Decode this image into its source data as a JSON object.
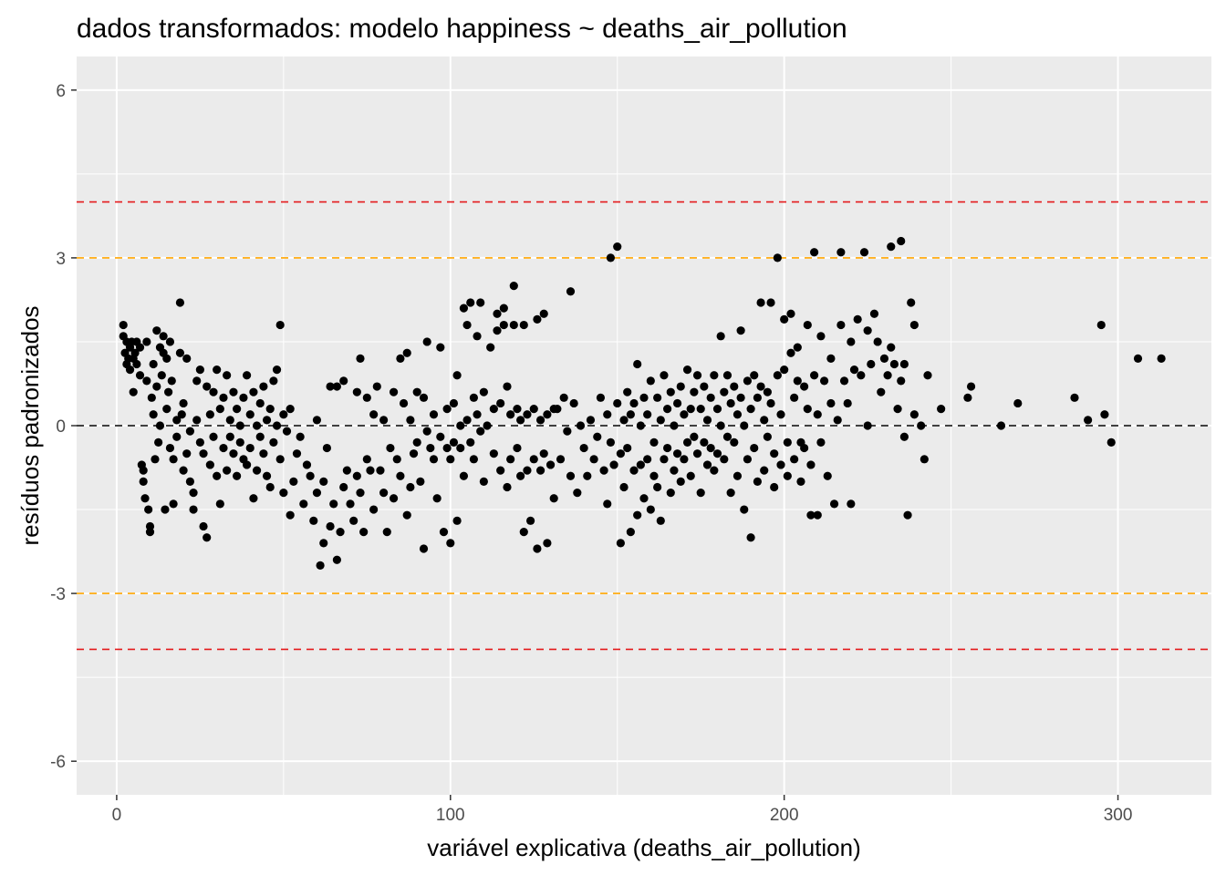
{
  "chart_data": {
    "type": "scatter",
    "title": "dados transformados: modelo happiness ~ deaths_air_pollution",
    "xlabel": "variável explicativa (deaths_air_pollution)",
    "ylabel": "resíduos padronizados",
    "xlim": [
      -12,
      328
    ],
    "ylim": [
      -6.6,
      6.6
    ],
    "x_ticks": [
      0,
      100,
      200,
      300
    ],
    "x_tick_labels": [
      "0",
      "100",
      "200",
      "300"
    ],
    "x_minor_ticks": [
      50,
      150,
      250
    ],
    "y_ticks": [
      6,
      3,
      0,
      -3,
      -6
    ],
    "y_tick_labels": [
      "6",
      "3",
      "0",
      "-3",
      "-6"
    ],
    "y_minor_ticks": [
      4.5,
      1.5,
      -1.5,
      -4.5
    ],
    "grid": true,
    "panel_background": "#ebebeb",
    "grid_color": "#ffffff",
    "point_color": "#000000",
    "reference_lines": [
      {
        "y": 4,
        "color": "#e41a1c",
        "style": "dashed"
      },
      {
        "y": 3,
        "color": "#ffa500",
        "style": "dashed"
      },
      {
        "y": 0,
        "color": "#000000",
        "style": "dashed"
      },
      {
        "y": -3,
        "color": "#ffa500",
        "style": "dashed"
      },
      {
        "y": -4,
        "color": "#e41a1c",
        "style": "dashed"
      }
    ],
    "points": [
      [
        2,
        1.6
      ],
      [
        2,
        1.8
      ],
      [
        2.5,
        1.3
      ],
      [
        3,
        1.5
      ],
      [
        3,
        1.1
      ],
      [
        3.5,
        1.2
      ],
      [
        4,
        1.4
      ],
      [
        4,
        1.0
      ],
      [
        4.5,
        1.5
      ],
      [
        5,
        1.2
      ],
      [
        5,
        0.6
      ],
      [
        5.5,
        1.3
      ],
      [
        6,
        1.1
      ],
      [
        6,
        1.5
      ],
      [
        7,
        1.4
      ],
      [
        7,
        0.9
      ],
      [
        7.5,
        -0.7
      ],
      [
        8,
        -1.0
      ],
      [
        8,
        -0.8
      ],
      [
        8.5,
        -1.3
      ],
      [
        9,
        1.5
      ],
      [
        9,
        0.8
      ],
      [
        9.5,
        -1.5
      ],
      [
        10,
        -1.8
      ],
      [
        10,
        -1.9
      ],
      [
        10.5,
        0.5
      ],
      [
        11,
        1.1
      ],
      [
        11,
        0.2
      ],
      [
        11.5,
        -0.6
      ],
      [
        12,
        1.7
      ],
      [
        12,
        0.7
      ],
      [
        12.5,
        -0.3
      ],
      [
        13,
        1.4
      ],
      [
        13,
        0.0
      ],
      [
        13.5,
        0.9
      ],
      [
        14,
        1.6
      ],
      [
        14,
        1.3
      ],
      [
        14.5,
        -1.5
      ],
      [
        15,
        1.2
      ],
      [
        15,
        0.3
      ],
      [
        15.5,
        0.6
      ],
      [
        16,
        1.5
      ],
      [
        16,
        -0.4
      ],
      [
        16.5,
        0.8
      ],
      [
        17,
        -0.6
      ],
      [
        17,
        -1.4
      ],
      [
        18,
        0.1
      ],
      [
        18,
        -0.2
      ],
      [
        19,
        2.2
      ],
      [
        19,
        1.3
      ],
      [
        19.5,
        0.2
      ],
      [
        20,
        0.4
      ],
      [
        20,
        -0.8
      ],
      [
        21,
        1.2
      ],
      [
        21,
        -0.5
      ],
      [
        22,
        -0.1
      ],
      [
        22,
        -1.0
      ],
      [
        23,
        -1.2
      ],
      [
        23,
        -1.5
      ],
      [
        24,
        0.1
      ],
      [
        24,
        0.8
      ],
      [
        25,
        1.0
      ],
      [
        25,
        -0.3
      ],
      [
        26,
        -0.5
      ],
      [
        26,
        -1.8
      ],
      [
        27,
        -2.0
      ],
      [
        27,
        0.7
      ],
      [
        28,
        0.2
      ],
      [
        28,
        -0.7
      ],
      [
        29,
        0.6
      ],
      [
        29,
        -0.2
      ],
      [
        30,
        1.0
      ],
      [
        30,
        -0.9
      ],
      [
        31,
        -1.4
      ],
      [
        31,
        0.3
      ],
      [
        32,
        0.5
      ],
      [
        32,
        -0.4
      ],
      [
        33,
        0.9
      ],
      [
        33,
        -0.8
      ],
      [
        34,
        0.1
      ],
      [
        34,
        -0.2
      ],
      [
        35,
        0.6
      ],
      [
        35,
        -0.5
      ],
      [
        36,
        0.3
      ],
      [
        36,
        -0.9
      ],
      [
        37,
        -0.3
      ],
      [
        37,
        0.0
      ],
      [
        38,
        0.5
      ],
      [
        38,
        -0.6
      ],
      [
        39,
        0.9
      ],
      [
        39,
        -0.7
      ],
      [
        40,
        0.2
      ],
      [
        40,
        -0.4
      ],
      [
        41,
        -1.3
      ],
      [
        41,
        0.6
      ],
      [
        42,
        0.0
      ],
      [
        42,
        -0.8
      ],
      [
        43,
        0.4
      ],
      [
        43,
        -0.2
      ],
      [
        44,
        0.7
      ],
      [
        44,
        -0.5
      ],
      [
        45,
        0.1
      ],
      [
        45,
        -0.9
      ],
      [
        46,
        0.3
      ],
      [
        46,
        -1.1
      ],
      [
        47,
        0.8
      ],
      [
        47,
        -0.3
      ],
      [
        48,
        1.0
      ],
      [
        48,
        0.0
      ],
      [
        49,
        1.8
      ],
      [
        49,
        -0.6
      ],
      [
        50,
        0.2
      ],
      [
        50,
        -1.2
      ],
      [
        51,
        -0.1
      ],
      [
        52,
        0.3
      ],
      [
        52,
        -1.6
      ],
      [
        53,
        -1.0
      ],
      [
        54,
        -0.5
      ],
      [
        55,
        -0.2
      ],
      [
        56,
        -1.4
      ],
      [
        57,
        -0.7
      ],
      [
        58,
        -0.9
      ],
      [
        59,
        -1.7
      ],
      [
        60,
        -1.2
      ],
      [
        60,
        0.1
      ],
      [
        61,
        -2.5
      ],
      [
        62,
        -1.0
      ],
      [
        62,
        -2.1
      ],
      [
        63,
        -0.4
      ],
      [
        64,
        0.7
      ],
      [
        64,
        -1.8
      ],
      [
        65,
        -1.4
      ],
      [
        66,
        -2.4
      ],
      [
        66,
        0.7
      ],
      [
        67,
        -1.9
      ],
      [
        68,
        -1.1
      ],
      [
        68,
        0.8
      ],
      [
        69,
        -0.8
      ],
      [
        70,
        -1.4
      ],
      [
        71,
        -1.7
      ],
      [
        72,
        0.6
      ],
      [
        72,
        -0.9
      ],
      [
        73,
        1.2
      ],
      [
        73,
        -1.2
      ],
      [
        74,
        -1.9
      ],
      [
        75,
        0.5
      ],
      [
        75,
        -0.6
      ],
      [
        76,
        -0.8
      ],
      [
        77,
        0.2
      ],
      [
        77,
        -1.5
      ],
      [
        78,
        0.7
      ],
      [
        79,
        -0.8
      ],
      [
        80,
        -1.2
      ],
      [
        80,
        0.1
      ],
      [
        81,
        -1.9
      ],
      [
        82,
        -0.4
      ],
      [
        83,
        0.6
      ],
      [
        83,
        -1.3
      ],
      [
        84,
        -0.6
      ],
      [
        85,
        1.2
      ],
      [
        85,
        -0.9
      ],
      [
        86,
        0.4
      ],
      [
        87,
        -1.6
      ],
      [
        87,
        1.3
      ],
      [
        88,
        0.1
      ],
      [
        88,
        -1.1
      ],
      [
        89,
        -0.5
      ],
      [
        90,
        0.6
      ],
      [
        90,
        -0.3
      ],
      [
        91,
        -1.0
      ],
      [
        92,
        -2.2
      ],
      [
        92,
        0.5
      ],
      [
        93,
        1.5
      ],
      [
        93,
        -0.1
      ],
      [
        94,
        -0.4
      ],
      [
        95,
        0.2
      ],
      [
        95,
        -0.6
      ],
      [
        96,
        -1.3
      ],
      [
        97,
        1.4
      ],
      [
        97,
        -0.2
      ],
      [
        98,
        -1.9
      ],
      [
        99,
        -0.4
      ],
      [
        99,
        0.3
      ],
      [
        100,
        -2.1
      ],
      [
        100,
        -0.6
      ],
      [
        101,
        0.4
      ],
      [
        101,
        -0.3
      ],
      [
        102,
        -1.7
      ],
      [
        102,
        0.9
      ],
      [
        103,
        0.0
      ],
      [
        103,
        -0.4
      ],
      [
        104,
        2.1
      ],
      [
        104,
        -0.9
      ],
      [
        105,
        1.8
      ],
      [
        105,
        0.1
      ],
      [
        106,
        -0.3
      ],
      [
        106,
        2.2
      ],
      [
        107,
        0.5
      ],
      [
        107,
        -0.6
      ],
      [
        108,
        1.6
      ],
      [
        108,
        0.2
      ],
      [
        109,
        2.2
      ],
      [
        109,
        -0.1
      ],
      [
        110,
        -1.0
      ],
      [
        110,
        0.6
      ],
      [
        111,
        0.0
      ],
      [
        112,
        1.4
      ],
      [
        113,
        0.3
      ],
      [
        113,
        -0.5
      ],
      [
        114,
        2.0
      ],
      [
        114,
        1.7
      ],
      [
        115,
        -0.8
      ],
      [
        115,
        0.4
      ],
      [
        116,
        2.1
      ],
      [
        116,
        1.8
      ],
      [
        117,
        0.7
      ],
      [
        117,
        -1.1
      ],
      [
        118,
        0.2
      ],
      [
        118,
        -0.6
      ],
      [
        119,
        2.5
      ],
      [
        119,
        1.8
      ],
      [
        120,
        -0.4
      ],
      [
        120,
        0.3
      ],
      [
        121,
        -0.9
      ],
      [
        121,
        0.1
      ],
      [
        122,
        -1.9
      ],
      [
        122,
        1.8
      ],
      [
        123,
        0.2
      ],
      [
        123,
        -0.8
      ],
      [
        124,
        -1.7
      ],
      [
        125,
        0.3
      ],
      [
        125,
        -0.6
      ],
      [
        126,
        1.9
      ],
      [
        126,
        -2.2
      ],
      [
        127,
        -0.8
      ],
      [
        127,
        0.1
      ],
      [
        128,
        2.0
      ],
      [
        128,
        -0.5
      ],
      [
        129,
        -2.1
      ],
      [
        129,
        0.2
      ],
      [
        130,
        -0.7
      ],
      [
        131,
        0.3
      ],
      [
        131,
        -1.3
      ],
      [
        132,
        0.3
      ],
      [
        133,
        -0.6
      ],
      [
        134,
        0.5
      ],
      [
        135,
        -0.1
      ],
      [
        136,
        2.4
      ],
      [
        136,
        -0.9
      ],
      [
        137,
        0.4
      ],
      [
        138,
        -1.2
      ],
      [
        139,
        0.0
      ],
      [
        140,
        -0.4
      ],
      [
        141,
        -0.9
      ],
      [
        142,
        0.1
      ],
      [
        143,
        -0.6
      ],
      [
        144,
        -0.2
      ],
      [
        145,
        0.5
      ],
      [
        146,
        -0.8
      ],
      [
        147,
        0.2
      ],
      [
        147,
        -1.4
      ],
      [
        148,
        3.0
      ],
      [
        148,
        -0.3
      ],
      [
        149,
        -0.7
      ],
      [
        150,
        3.2
      ],
      [
        150,
        0.4
      ],
      [
        151,
        -2.1
      ],
      [
        151,
        -0.5
      ],
      [
        152,
        0.1
      ],
      [
        152,
        -1.1
      ],
      [
        153,
        0.6
      ],
      [
        153,
        -0.4
      ],
      [
        154,
        -1.9
      ],
      [
        154,
        0.2
      ],
      [
        155,
        -0.8
      ],
      [
        155,
        0.4
      ],
      [
        156,
        -1.6
      ],
      [
        156,
        1.1
      ],
      [
        157,
        -0.7
      ],
      [
        157,
        0.0
      ],
      [
        158,
        0.5
      ],
      [
        158,
        -1.3
      ],
      [
        159,
        -0.6
      ],
      [
        159,
        0.2
      ],
      [
        160,
        -1.5
      ],
      [
        160,
        0.8
      ],
      [
        161,
        -0.9
      ],
      [
        161,
        -0.3
      ],
      [
        162,
        0.5
      ],
      [
        162,
        -1.1
      ],
      [
        163,
        -1.7
      ],
      [
        163,
        0.1
      ],
      [
        164,
        -0.6
      ],
      [
        164,
        0.9
      ],
      [
        165,
        -0.4
      ],
      [
        165,
        0.3
      ],
      [
        166,
        -1.2
      ],
      [
        166,
        0.6
      ],
      [
        167,
        -0.8
      ],
      [
        167,
        0.0
      ],
      [
        168,
        0.4
      ],
      [
        168,
        -0.5
      ],
      [
        169,
        -1.0
      ],
      [
        169,
        0.7
      ],
      [
        170,
        0.2
      ],
      [
        170,
        -0.6
      ],
      [
        171,
        1.0
      ],
      [
        171,
        -0.3
      ],
      [
        172,
        0.3
      ],
      [
        172,
        -0.9
      ],
      [
        173,
        0.6
      ],
      [
        173,
        -0.2
      ],
      [
        174,
        0.9
      ],
      [
        174,
        -0.5
      ],
      [
        175,
        0.3
      ],
      [
        175,
        -1.2
      ],
      [
        176,
        0.7
      ],
      [
        176,
        -0.3
      ],
      [
        177,
        0.1
      ],
      [
        177,
        -0.7
      ],
      [
        178,
        0.5
      ],
      [
        178,
        -0.4
      ],
      [
        179,
        0.9
      ],
      [
        179,
        -0.8
      ],
      [
        180,
        0.3
      ],
      [
        180,
        -0.5
      ],
      [
        181,
        1.6
      ],
      [
        181,
        0.0
      ],
      [
        182,
        0.6
      ],
      [
        182,
        -0.6
      ],
      [
        183,
        0.9
      ],
      [
        183,
        -0.2
      ],
      [
        184,
        0.4
      ],
      [
        184,
        -1.2
      ],
      [
        185,
        0.7
      ],
      [
        185,
        -0.3
      ],
      [
        186,
        0.2
      ],
      [
        186,
        -0.9
      ],
      [
        187,
        1.7
      ],
      [
        187,
        0.5
      ],
      [
        188,
        0.0
      ],
      [
        188,
        -1.5
      ],
      [
        189,
        0.8
      ],
      [
        189,
        -0.6
      ],
      [
        190,
        -2.0
      ],
      [
        190,
        0.3
      ],
      [
        191,
        0.9
      ],
      [
        191,
        -0.4
      ],
      [
        192,
        0.5
      ],
      [
        192,
        -1.0
      ],
      [
        193,
        2.2
      ],
      [
        193,
        0.7
      ],
      [
        194,
        0.1
      ],
      [
        194,
        -0.8
      ],
      [
        195,
        0.6
      ],
      [
        195,
        -0.2
      ],
      [
        196,
        2.2
      ],
      [
        196,
        0.4
      ],
      [
        197,
        -1.1
      ],
      [
        197,
        -0.5
      ],
      [
        198,
        3.0
      ],
      [
        198,
        0.9
      ],
      [
        199,
        0.2
      ],
      [
        199,
        -0.7
      ],
      [
        200,
        1.9
      ],
      [
        200,
        1.0
      ],
      [
        201,
        -0.3
      ],
      [
        201,
        -0.9
      ],
      [
        202,
        2.0
      ],
      [
        202,
        1.3
      ],
      [
        203,
        0.5
      ],
      [
        203,
        -0.6
      ],
      [
        204,
        1.4
      ],
      [
        204,
        0.8
      ],
      [
        205,
        -0.3
      ],
      [
        205,
        -1.0
      ],
      [
        206,
        0.7
      ],
      [
        206,
        -0.4
      ],
      [
        207,
        1.8
      ],
      [
        207,
        0.3
      ],
      [
        208,
        -1.6
      ],
      [
        208,
        -0.7
      ],
      [
        209,
        3.1
      ],
      [
        209,
        0.9
      ],
      [
        210,
        0.2
      ],
      [
        210,
        -1.6
      ],
      [
        211,
        1.6
      ],
      [
        211,
        -0.3
      ],
      [
        212,
        0.8
      ],
      [
        213,
        -0.9
      ],
      [
        214,
        0.4
      ],
      [
        214,
        1.2
      ],
      [
        215,
        -1.4
      ],
      [
        216,
        0.1
      ],
      [
        217,
        3.1
      ],
      [
        217,
        1.8
      ],
      [
        218,
        0.8
      ],
      [
        219,
        0.4
      ],
      [
        220,
        1.5
      ],
      [
        220,
        -1.4
      ],
      [
        221,
        1.0
      ],
      [
        222,
        1.9
      ],
      [
        223,
        0.9
      ],
      [
        224,
        3.1
      ],
      [
        225,
        1.7
      ],
      [
        225,
        0.0
      ],
      [
        226,
        1.1
      ],
      [
        227,
        2.0
      ],
      [
        228,
        1.5
      ],
      [
        229,
        0.6
      ],
      [
        230,
        1.2
      ],
      [
        231,
        0.9
      ],
      [
        232,
        3.2
      ],
      [
        232,
        1.4
      ],
      [
        233,
        1.1
      ],
      [
        234,
        0.3
      ],
      [
        235,
        3.3
      ],
      [
        235,
        0.8
      ],
      [
        236,
        1.1
      ],
      [
        236,
        -0.2
      ],
      [
        237,
        -1.6
      ],
      [
        238,
        2.2
      ],
      [
        239,
        1.8
      ],
      [
        239,
        0.2
      ],
      [
        241,
        0.0
      ],
      [
        242,
        -0.6
      ],
      [
        243,
        0.9
      ],
      [
        247,
        0.3
      ],
      [
        255,
        0.5
      ],
      [
        256,
        0.7
      ],
      [
        265,
        0.0
      ],
      [
        270,
        0.4
      ],
      [
        287,
        0.5
      ],
      [
        291,
        0.1
      ],
      [
        295,
        1.8
      ],
      [
        296,
        0.2
      ],
      [
        298,
        -0.3
      ],
      [
        306,
        1.2
      ],
      [
        313,
        1.2
      ]
    ]
  }
}
